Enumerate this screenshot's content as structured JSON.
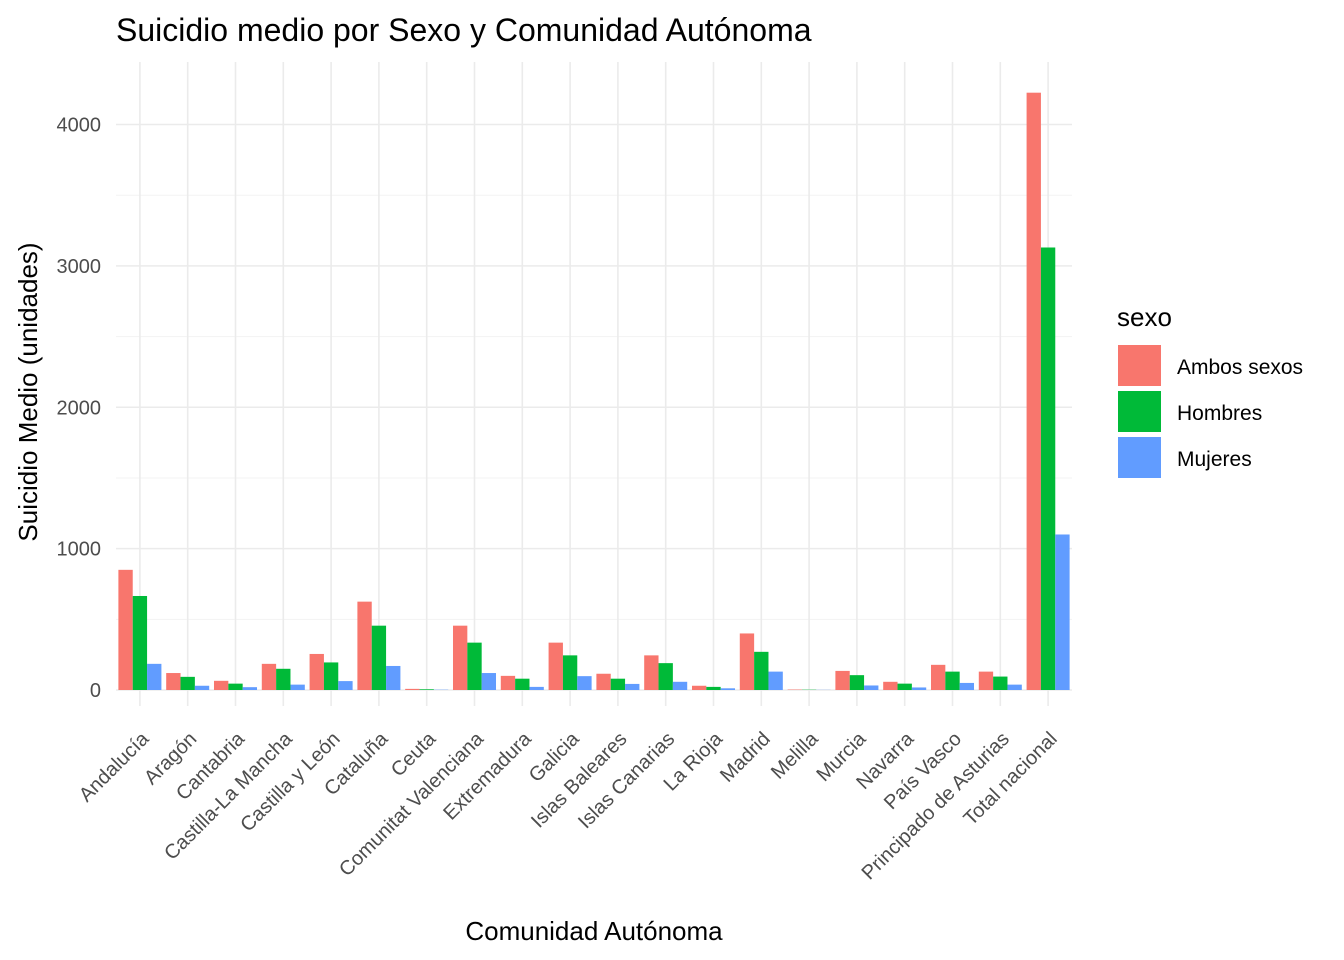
{
  "chart_data": {
    "type": "bar",
    "title": "Suicidio medio por Sexo y Comunidad Autónoma",
    "xlabel": "Comunidad Autónoma",
    "ylabel": "Suicidio Medio (unidades)",
    "ylim": [
      0,
      4450
    ],
    "yticks": [
      0,
      1000,
      2000,
      3000,
      4000
    ],
    "grid": true,
    "legend": {
      "title": "sexo",
      "position": "right"
    },
    "categories": [
      "Andalucía",
      "Aragón",
      "Cantabria",
      "Castilla-La Mancha",
      "Castilla y León",
      "Cataluña",
      "Ceuta",
      "Comunitat Valenciana",
      "Extremadura",
      "Galicia",
      "Islas Baleares",
      "Islas Canarias",
      "La Rioja",
      "Madrid",
      "Melilla",
      "Murcia",
      "Navarra",
      "País Vasco",
      "Principado de Asturias",
      "Total nacional"
    ],
    "series": [
      {
        "name": "Ambos sexos",
        "color": "#F8766D",
        "values": [
          850,
          120,
          65,
          185,
          255,
          625,
          8,
          455,
          100,
          335,
          115,
          245,
          30,
          400,
          3,
          135,
          58,
          178,
          130,
          4225
        ]
      },
      {
        "name": "Hombres",
        "color": "#00BA38",
        "values": [
          665,
          93,
          45,
          150,
          195,
          455,
          5,
          335,
          80,
          245,
          80,
          190,
          22,
          270,
          2,
          105,
          45,
          130,
          95,
          3130
        ]
      },
      {
        "name": "Mujeres",
        "color": "#619CFF",
        "values": [
          185,
          30,
          20,
          38,
          63,
          170,
          2,
          120,
          22,
          98,
          43,
          58,
          12,
          130,
          1,
          32,
          18,
          50,
          38,
          1100
        ]
      }
    ]
  }
}
